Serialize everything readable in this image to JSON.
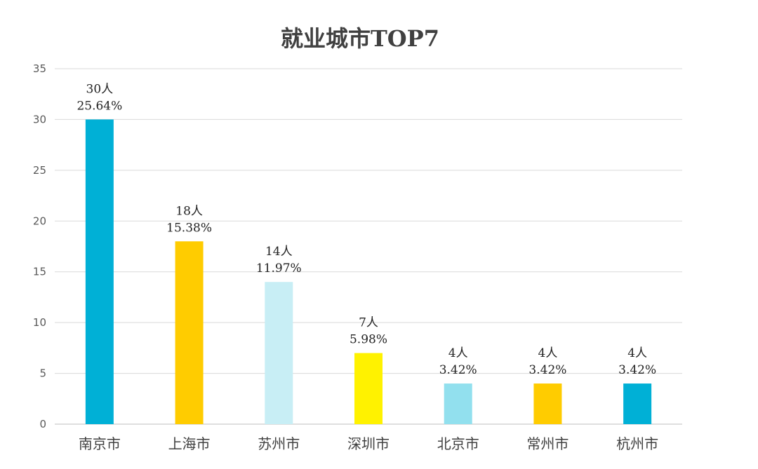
{
  "chart_data": {
    "type": "bar",
    "title": "就业城市TOP7",
    "xlabel": "",
    "ylabel": "",
    "ylim": [
      0,
      35
    ],
    "yticks": [
      0,
      5,
      10,
      15,
      20,
      25,
      30,
      35
    ],
    "grid": true,
    "legend": "none",
    "categories": [
      "南京市",
      "上海市",
      "苏州市",
      "深圳市",
      "北京市",
      "常州市",
      "杭州市"
    ],
    "values": [
      30,
      18,
      14,
      7,
      4,
      4,
      4
    ],
    "count_labels": [
      "30人",
      "18人",
      "14人",
      "7人",
      "4人",
      "4人",
      "4人"
    ],
    "percent_labels": [
      "25.64%",
      "15.38%",
      "11.97%",
      "5.98%",
      "3.42%",
      "3.42%",
      "3.42%"
    ],
    "colors": [
      "#00B0D6",
      "#FFCC00",
      "#C8EEF5",
      "#FFF200",
      "#92E0EE",
      "#FFCC00",
      "#00B0D6"
    ],
    "gridline_color": "#D9D9D9"
  }
}
